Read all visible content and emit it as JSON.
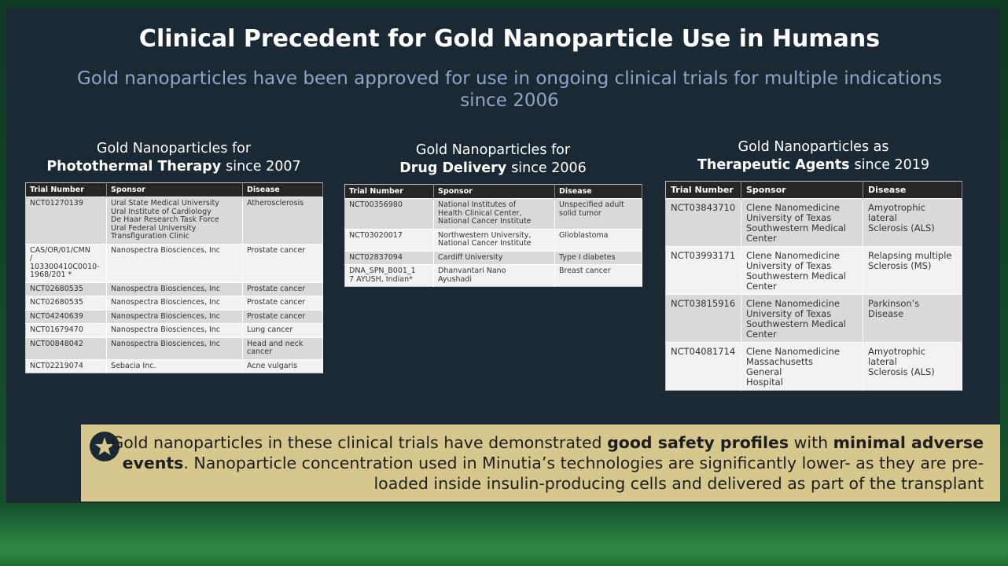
{
  "header": {
    "title": "Clinical Precedent for Gold Nanoparticle Use in Humans",
    "subtitle": "Gold nanoparticles have been approved for use in ongoing clinical trials for multiple indications since 2006"
  },
  "sections": [
    {
      "heading": [
        "Gold Nanoparticles for",
        "Photothermal Therapy",
        "since 2007"
      ],
      "table": {
        "columns": [
          "Trial Number",
          "Sponsor",
          "Disease"
        ],
        "rows": [
          [
            "NCT01270139",
            "Ural State Medical University\nUral Institute of Cardiology\nDe Haar Research Task Force\nUral Federal University\nTransfiguration Clinic",
            "Atherosclerosis"
          ],
          [
            "CAS/OR/01/CMN\n/\n103300410C0010-\n1968/201 *",
            "Nanospectra Biosciences, Inc",
            "Prostate cancer"
          ],
          [
            "NCT02680535",
            "Nanospectra Biosciences, Inc",
            "Prostate cancer"
          ],
          [
            "NCT02680535",
            "Nanospectra Biosciences, Inc",
            "Prostate cancer"
          ],
          [
            "NCT04240639",
            "Nanospectra Biosciences, Inc",
            "Prostate cancer"
          ],
          [
            "NCT01679470",
            "Nanospectra Biosciences, Inc",
            "Lung cancer"
          ],
          [
            "NCT00848042",
            "Nanospectra Biosciences, Inc",
            "Head and neck\ncancer"
          ],
          [
            "NCT02219074",
            "Sebacia Inc.",
            "Acne vulgaris"
          ]
        ]
      }
    },
    {
      "heading": [
        "Gold Nanoparticles for",
        "Drug Delivery",
        "since 2006"
      ],
      "table": {
        "columns": [
          "Trial Number",
          "Sponsor",
          "Disease"
        ],
        "rows": [
          [
            "NCT00356980",
            "National Institutes of\nHealth Clinical Center,\nNational Cancer Institute",
            "Unspecified adult\nsolid tumor"
          ],
          [
            "NCT03020017",
            "Northwestern University,\nNational Cancer Institute",
            "Glioblastoma"
          ],
          [
            "NCT02837094",
            "Cardiff University",
            "Type I diabetes"
          ],
          [
            "DNA_SPN_B001_1\n7 AYUSH, Indian*",
            "Dhanvantari Nano\nAyushadi",
            "Breast cancer"
          ]
        ]
      }
    },
    {
      "heading": [
        "Gold Nanoparticles as",
        "Therapeutic Agents",
        "since 2019"
      ],
      "table": {
        "columns": [
          "Trial Number",
          "Sponsor",
          "Disease"
        ],
        "rows": [
          [
            "NCT03843710",
            "Clene Nanomedicine\nUniversity of Texas\nSouthwestern Medical\nCenter",
            "Amyotrophic\nlateral\nSclerosis (ALS)"
          ],
          [
            "NCT03993171",
            "Clene Nanomedicine\nUniversity of Texas\nSouthwestern Medical\nCenter",
            "Relapsing multiple\nSclerosis (MS)"
          ],
          [
            "NCT03815916",
            "Clene Nanomedicine\nUniversity of Texas\nSouthwestern Medical\nCenter",
            "Parkinson’s\nDisease"
          ],
          [
            "NCT04081714",
            "Clene Nanomedicine\nMassachusetts\nGeneral\nHospital",
            "Amyotrophic\nlateral\nSclerosis (ALS)"
          ]
        ]
      }
    }
  ],
  "footer": {
    "segments": [
      {
        "text": "Gold nanoparticles in these clinical trials have demonstrated ",
        "bold": false
      },
      {
        "text": "good safety profiles",
        "bold": true
      },
      {
        "text": " with ",
        "bold": false
      },
      {
        "text": "minimal adverse events",
        "bold": true
      },
      {
        "text": ". Nanoparticle concentration used in Minutia’s technologies are significantly lower- as they are pre-loaded inside insulin-producing cells and delivered as part of the transplant",
        "bold": false
      }
    ]
  }
}
